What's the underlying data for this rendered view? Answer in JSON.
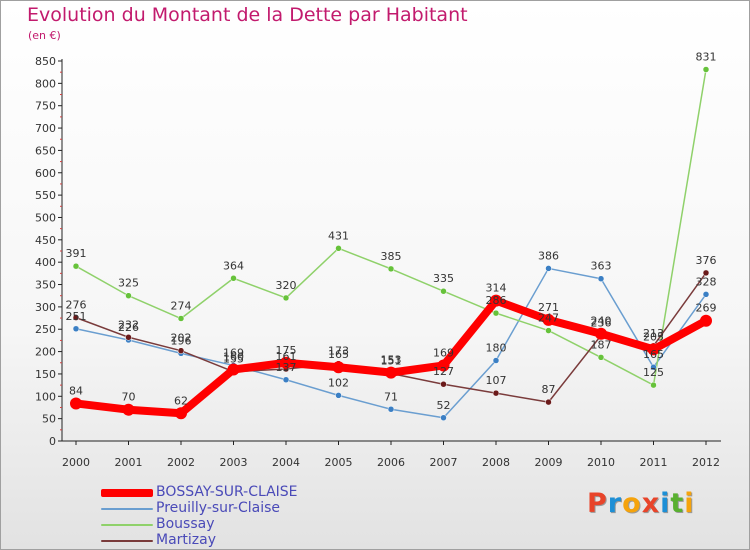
{
  "title": "Evolution du Montant de la Dette par Habitant",
  "subtitle": "(en €)",
  "logo": {
    "text": "Proxiti",
    "colors": [
      "#e8442a",
      "#1d8fd6",
      "#f5a30c",
      "#e8442a",
      "#1d8fd6",
      "#59b030",
      "#f5a30c"
    ]
  },
  "chart_data": {
    "type": "line",
    "x": [
      "2000",
      "2001",
      "2002",
      "2003",
      "2004",
      "2005",
      "2006",
      "2007",
      "2008",
      "2009",
      "2010",
      "2011",
      "2012"
    ],
    "ylim": [
      0,
      850
    ],
    "yticks": [
      0,
      50,
      100,
      150,
      200,
      250,
      300,
      350,
      400,
      450,
      500,
      550,
      600,
      650,
      700,
      750,
      800,
      850
    ],
    "grid": false,
    "legend_position": "bottom-left",
    "series": [
      {
        "name": "Preuilly-sur-Claise",
        "color": "#6a9ed0",
        "marker": "#3b7fc4",
        "values": [
          251,
          226,
          196,
          169,
          137,
          102,
          71,
          52,
          180,
          386,
          363,
          165,
          328
        ]
      },
      {
        "name": "Boussay",
        "color": "#8fd16a",
        "marker": "#66c23a",
        "values": [
          391,
          325,
          274,
          364,
          320,
          431,
          385,
          335,
          286,
          247,
          187,
          125,
          831
        ]
      },
      {
        "name": "Martizay",
        "color": "#7a3b3b",
        "marker": "#6b1a1a",
        "values": [
          276,
          232,
          202,
          155,
          161,
          173,
          151,
          127,
          107,
          87,
          236,
          213,
          376
        ]
      },
      {
        "name": "BOSSAY-SUR-CLAISE",
        "color": "#ff0000",
        "marker": "#ff0000",
        "values": [
          84,
          70,
          62,
          160,
          175,
          165,
          153,
          169,
          314,
          271,
          240,
          205,
          269
        ]
      }
    ],
    "labels_shown": [
      {
        "series": 0,
        "points": [
          0,
          1,
          2,
          3,
          4,
          5,
          6,
          7,
          8,
          9,
          10,
          11,
          12
        ]
      },
      {
        "series": 1,
        "points": [
          0,
          1,
          2,
          3,
          4,
          5,
          6,
          7,
          8,
          9,
          10,
          11,
          12
        ]
      },
      {
        "series": 2,
        "points": [
          0,
          1,
          2,
          3,
          4,
          5,
          6,
          7,
          8,
          9,
          10,
          11,
          12
        ]
      },
      {
        "series": 3,
        "points": [
          0,
          1,
          2,
          3,
          4,
          5,
          6,
          7,
          8,
          9,
          10,
          11,
          12
        ]
      }
    ]
  },
  "legend": [
    {
      "label": "BOSSAY-SUR-CLAISE",
      "color": "#ff0000"
    },
    {
      "label": "Preuilly-sur-Claise",
      "color": "#6a9ed0"
    },
    {
      "label": "Boussay",
      "color": "#8fd16a"
    },
    {
      "label": "Martizay",
      "color": "#7a3b3b"
    }
  ]
}
